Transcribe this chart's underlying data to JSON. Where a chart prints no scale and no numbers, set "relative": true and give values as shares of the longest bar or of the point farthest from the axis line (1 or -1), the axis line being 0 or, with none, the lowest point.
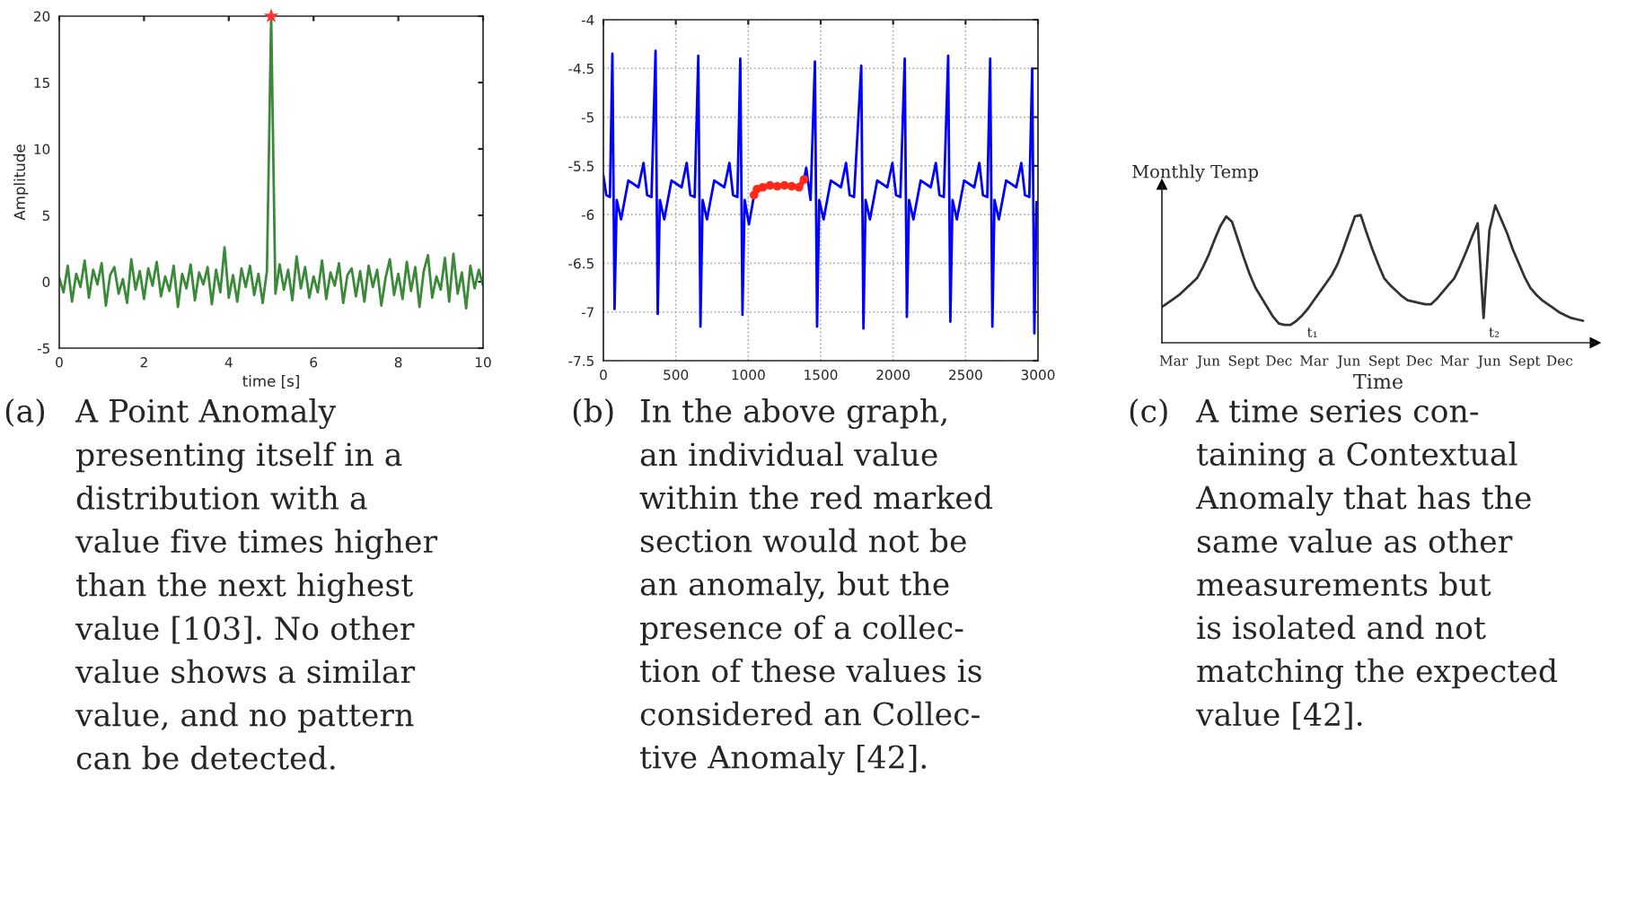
{
  "chart_data": [
    {
      "type": "line",
      "xlabel": "time [s]",
      "ylabel": "Amplitude",
      "xlim": [
        0,
        10
      ],
      "ylim": [
        -5,
        20
      ],
      "xticks": [
        0,
        2,
        4,
        6,
        8,
        10
      ],
      "yticks": [
        -5,
        0,
        5,
        10,
        15,
        20
      ],
      "grid": false,
      "series": [
        {
          "color": "#3a8a3a",
          "x": [
            0,
            0.1,
            0.2,
            0.3,
            0.4,
            0.5,
            0.6,
            0.7,
            0.8,
            0.9,
            1,
            1.1,
            1.2,
            1.3,
            1.4,
            1.5,
            1.6,
            1.7,
            1.8,
            1.9,
            2,
            2.1,
            2.2,
            2.3,
            2.4,
            2.5,
            2.6,
            2.7,
            2.8,
            2.9,
            3,
            3.1,
            3.2,
            3.3,
            3.4,
            3.5,
            3.6,
            3.7,
            3.8,
            3.9,
            4,
            4.1,
            4.2,
            4.3,
            4.4,
            4.5,
            4.6,
            4.7,
            4.8,
            4.9,
            5,
            5.1,
            5.2,
            5.3,
            5.4,
            5.5,
            5.6,
            5.7,
            5.8,
            5.9,
            6,
            6.1,
            6.2,
            6.3,
            6.4,
            6.5,
            6.6,
            6.7,
            6.8,
            6.9,
            7,
            7.1,
            7.2,
            7.3,
            7.4,
            7.5,
            7.6,
            7.7,
            7.8,
            7.9,
            8,
            8.1,
            8.2,
            8.3,
            8.4,
            8.5,
            8.6,
            8.7,
            8.8,
            8.9,
            9,
            9.1,
            9.2,
            9.3,
            9.4,
            9.5,
            9.6,
            9.7,
            9.8,
            9.9,
            10
          ],
          "values": [
            0.3,
            -0.8,
            1.2,
            -1.5,
            0.6,
            -0.4,
            1.6,
            -1.2,
            0.9,
            -0.2,
            1.4,
            -1.8,
            0.5,
            1.1,
            -0.9,
            0.2,
            -1.6,
            1.7,
            -0.6,
            0.8,
            -1.3,
            1.0,
            -0.3,
            1.5,
            -1.1,
            0.4,
            -0.7,
            1.2,
            -1.9,
            0.6,
            -0.5,
            1.3,
            -1.4,
            0.7,
            -0.2,
            1.1,
            -1.7,
            0.9,
            -0.8,
            2.6,
            -1.2,
            0.5,
            -1.5,
            1.0,
            -0.4,
            1.2,
            -1.0,
            0.6,
            -1.6,
            0.8,
            20,
            -0.9,
            1.3,
            -0.6,
            0.9,
            -1.4,
            1.9,
            -0.5,
            1.1,
            -1.2,
            0.4,
            -0.8,
            1.6,
            -1.3,
            0.7,
            -0.3,
            1.4,
            -1.6,
            0.5,
            1.0,
            -1.1,
            0.8,
            -1.5,
            1.2,
            -0.4,
            0.9,
            -1.8,
            0.3,
            1.7,
            -1.0,
            0.6,
            -1.3,
            1.5,
            -0.7,
            1.1,
            -1.9,
            0.8,
            2.0,
            -1.2,
            0.4,
            -0.6,
            1.8,
            -1.5,
            2.1,
            -0.9,
            0.7,
            -2.0,
            1.2,
            -0.5,
            0.9,
            -0.3
          ]
        },
        {
          "type": "scatter",
          "color": "#ff3030",
          "marker": "star",
          "x": [
            5
          ],
          "values": [
            20
          ]
        }
      ],
      "annotations": [
        "(a)",
        "A Point Anomaly\npresenting itself in a\ndistribution with a\nvalue five times higher\nthan the next highest\nvalue [103]. No other\nvalue shows a similar\nvalue, and no pattern\ncan be detected."
      ]
    },
    {
      "type": "line",
      "xlim": [
        0,
        3000
      ],
      "ylim": [
        -7.5,
        -4
      ],
      "xticks": [
        0,
        500,
        1000,
        1500,
        2000,
        2500,
        3000
      ],
      "yticks": [
        -7.5,
        -7,
        -6.5,
        -6,
        -5.5,
        -5,
        -4.5,
        -4
      ],
      "grid": true,
      "series": [
        {
          "color": "#0000ff",
          "x": [
            0,
            20,
            45,
            62,
            77,
            92,
            122,
            172,
            242,
            277,
            302,
            332,
            360,
            375,
            390,
            420,
            470,
            540,
            575,
            600,
            630,
            655,
            670,
            685,
            715,
            765,
            835,
            870,
            895,
            925,
            945,
            960,
            975,
            1005,
            1040,
            1200,
            1385,
            1400,
            1430,
            1460,
            1475,
            1490,
            1520,
            1570,
            1640,
            1675,
            1700,
            1730,
            1780,
            1795,
            1810,
            1840,
            1890,
            1960,
            1995,
            2020,
            2050,
            2080,
            2095,
            2110,
            2140,
            2190,
            2260,
            2295,
            2320,
            2350,
            2380,
            2395,
            2410,
            2440,
            2490,
            2560,
            2595,
            2620,
            2650,
            2670,
            2685,
            2700,
            2730,
            2780,
            2850,
            2885,
            2910,
            2940,
            2960,
            2975,
            2990,
            3000
          ],
          "values": [
            -5.6,
            -5.8,
            -5.82,
            -4.35,
            -6.97,
            -5.85,
            -6.05,
            -5.65,
            -5.72,
            -5.47,
            -5.8,
            -5.82,
            -4.32,
            -7.02,
            -5.85,
            -6.05,
            -5.65,
            -5.72,
            -5.47,
            -5.8,
            -5.82,
            -4.37,
            -7.15,
            -5.85,
            -6.05,
            -5.65,
            -5.72,
            -5.47,
            -5.8,
            -5.82,
            -4.4,
            -7.03,
            -5.85,
            -6.1,
            -5.8,
            null,
            -5.64,
            -5.52,
            -5.85,
            -4.43,
            -7.15,
            -5.85,
            -6.05,
            -5.65,
            -5.72,
            -5.47,
            -5.8,
            -5.82,
            -4.47,
            -7.17,
            -5.85,
            -6.05,
            -5.65,
            -5.72,
            -5.47,
            -5.8,
            -5.82,
            -4.4,
            -7.05,
            -5.85,
            -6.05,
            -5.65,
            -5.72,
            -5.47,
            -5.8,
            -5.82,
            -4.37,
            -7.1,
            -5.85,
            -6.05,
            -5.65,
            -5.72,
            -5.47,
            -5.8,
            -5.82,
            -4.4,
            -7.15,
            -5.85,
            -6.05,
            -5.65,
            -5.72,
            -5.47,
            -5.8,
            -5.82,
            -4.5,
            -7.22,
            -5.87,
            -5.9
          ]
        },
        {
          "color": "#ff2a1a",
          "marker": "circle",
          "x": [
            1040,
            1060,
            1100,
            1150,
            1200,
            1250,
            1300,
            1350,
            1385
          ],
          "values": [
            -5.8,
            -5.74,
            -5.72,
            -5.7,
            -5.71,
            -5.7,
            -5.71,
            -5.72,
            -5.64
          ]
        }
      ],
      "annotations": [
        "(b)",
        "In the above graph,\nan individual value\nwithin the red marked\nsection would not be\nan anomaly, but the\npresence of a collec-\ntion of these values is\nconsidered an Collec-\ntive Anomaly [42]."
      ]
    },
    {
      "type": "line",
      "relative": true,
      "xlabel": "Time",
      "ylabel": "Monthly Temp",
      "grid": false,
      "categories": [
        null,
        null,
        "Mar",
        null,
        null,
        null,
        null,
        null,
        "Jun",
        null,
        null,
        null,
        null,
        null,
        "Sept",
        null,
        null,
        null,
        null,
        null,
        "Dec",
        null,
        null,
        null,
        null,
        null,
        "Mar",
        null,
        null,
        null,
        null,
        null,
        "Jun",
        null,
        null,
        null,
        null,
        null,
        "Sept",
        null,
        null,
        null,
        null,
        null,
        "Dec",
        null,
        null,
        null,
        null,
        null,
        "Mar",
        null,
        null,
        null,
        null,
        null,
        "Jun",
        null,
        null,
        null,
        null,
        null,
        "Sept",
        null,
        null,
        null,
        null,
        null,
        "Dec",
        null,
        null,
        null,
        null,
        null,
        null
      ],
      "series": [
        {
          "color": "#333333",
          "values": [
            0.26,
            0.29,
            0.32,
            0.35,
            0.39,
            0.43,
            0.47,
            0.55,
            0.64,
            0.75,
            0.85,
            0.92,
            0.88,
            0.75,
            0.62,
            0.5,
            0.4,
            0.33,
            0.26,
            0.19,
            0.14,
            0.13,
            0.13,
            0.16,
            0.2,
            0.25,
            0.31,
            0.37,
            0.43,
            0.49,
            0.57,
            0.68,
            0.8,
            0.92,
            0.93,
            0.8,
            0.68,
            0.57,
            0.47,
            0.42,
            0.38,
            0.34,
            0.31,
            0.3,
            0.29,
            0.28,
            0.28,
            0.32,
            0.37,
            0.42,
            0.47,
            0.56,
            0.66,
            0.77,
            0.87,
            0.18,
            0.82,
            1.0,
            0.9,
            0.8,
            0.68,
            0.58,
            0.48,
            0.4,
            0.35,
            0.31,
            0.28,
            0.25,
            0.22,
            0.2,
            0.18,
            0.17,
            0.16,
            null,
            null
          ]
        }
      ],
      "annotations": [
        "t₁",
        "t₂",
        "(c)",
        "A time series con-\ntaining a Contextual\nAnomaly that has the\nsame value as other\nmeasurements but\nis isolated and not\nmatching the expected\nvalue [42]."
      ]
    }
  ]
}
